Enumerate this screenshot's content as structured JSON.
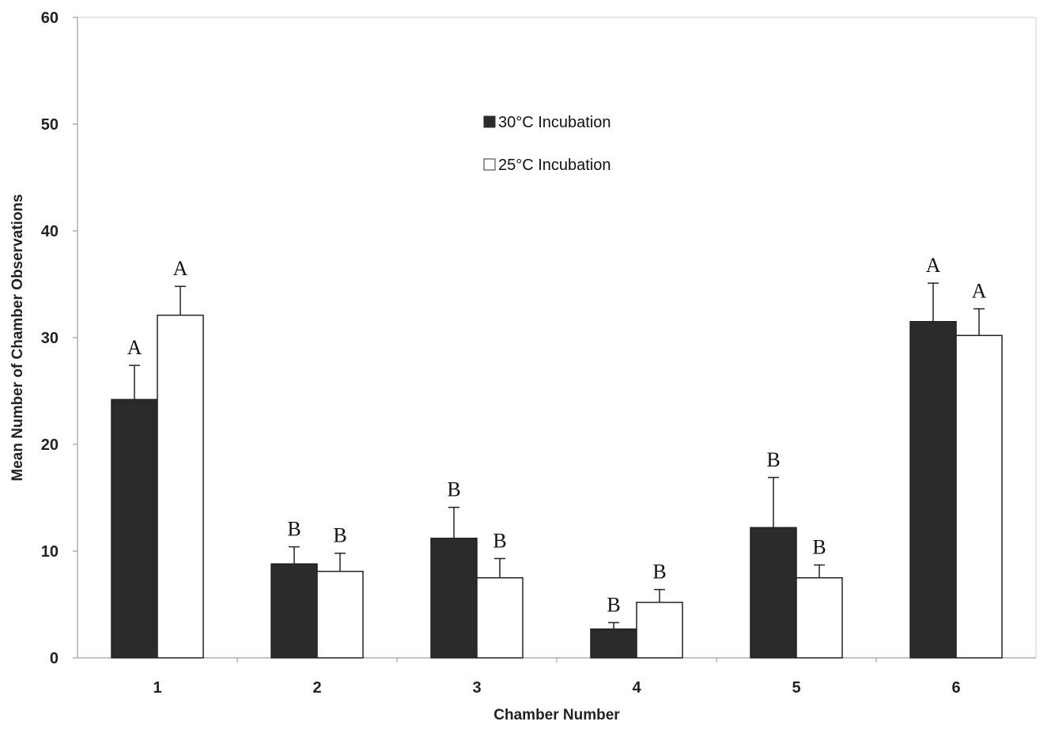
{
  "chart_data": {
    "type": "bar",
    "xlabel": "Chamber Number",
    "ylabel": "Mean Number of Chamber Observations",
    "ylim": [
      0,
      60
    ],
    "yticks": [
      0,
      10,
      20,
      30,
      40,
      50,
      60
    ],
    "categories": [
      "1",
      "2",
      "3",
      "4",
      "5",
      "6"
    ],
    "grid": false,
    "legend_position": "top-center",
    "series": [
      {
        "name": "30°C Incubation",
        "color": "#2b2b2b",
        "values": [
          24.2,
          8.8,
          11.2,
          2.7,
          12.2,
          31.5
        ],
        "error": [
          3.2,
          1.6,
          2.9,
          0.6,
          4.7,
          3.6
        ],
        "letters": [
          "A",
          "B",
          "B",
          "B",
          "B",
          "A"
        ]
      },
      {
        "name": "25°C Incubation",
        "color": "#ffffff",
        "values": [
          32.1,
          8.1,
          7.5,
          5.2,
          7.5,
          30.2
        ],
        "error": [
          2.7,
          1.7,
          1.8,
          1.2,
          1.2,
          2.5
        ],
        "letters": [
          "A",
          "B",
          "B",
          "B",
          "B",
          "A"
        ]
      }
    ]
  }
}
